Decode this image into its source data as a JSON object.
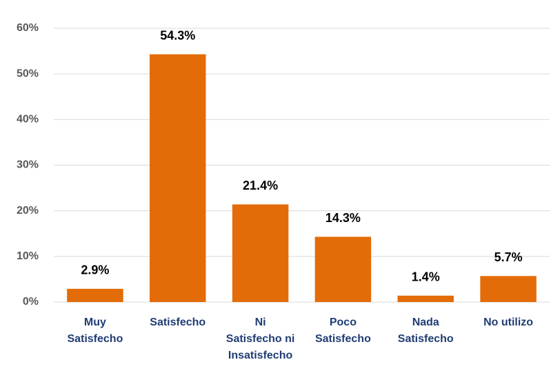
{
  "chart_data": {
    "type": "bar",
    "categories": [
      "Muy Satisfecho",
      "Satisfecho",
      "Ni Satisfecho ni Insatisfecho",
      "Poco Satisfecho",
      "Nada Satisfecho",
      "No utilizo"
    ],
    "values": [
      2.9,
      54.3,
      21.4,
      14.3,
      1.4,
      5.7
    ],
    "value_labels": [
      "2.9%",
      "54.3%",
      "21.4%",
      "14.3%",
      "1.4%",
      "5.7%"
    ],
    "color": "#e36c09",
    "ylim": [
      0,
      60
    ],
    "yticks": [
      {
        "value": 0,
        "label": "0%"
      },
      {
        "value": 10,
        "label": "10%"
      },
      {
        "value": 20,
        "label": "20%"
      },
      {
        "value": 30,
        "label": "30%"
      },
      {
        "value": 40,
        "label": "40%"
      },
      {
        "value": 50,
        "label": "50%"
      },
      {
        "value": 60,
        "label": "60%"
      }
    ],
    "grid": true
  }
}
